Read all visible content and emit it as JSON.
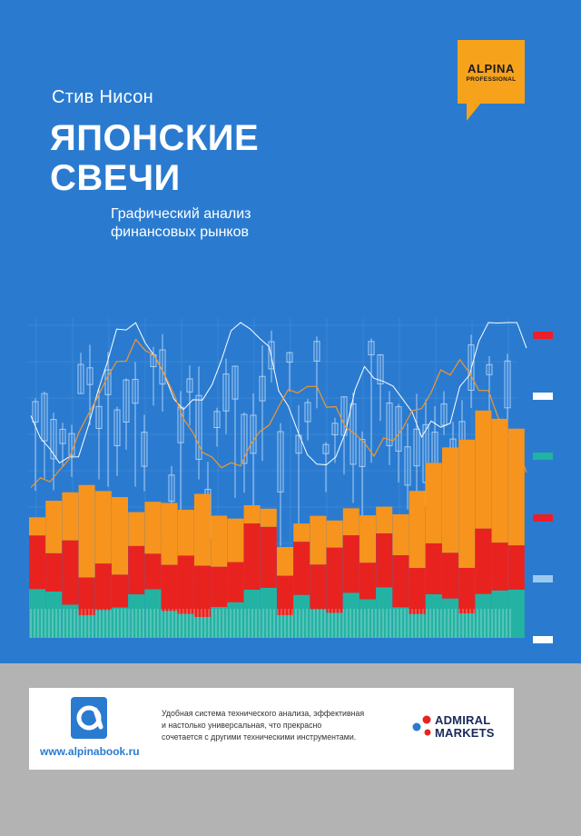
{
  "cover": {
    "author": "Стив Нисон",
    "title_lines": [
      "ЯПОНСКИЕ",
      "СВЕЧИ"
    ],
    "subtitle_lines": [
      "Графический анализ",
      "финансовых рынков"
    ],
    "background_color": "#2a7bd0"
  },
  "badge": {
    "name": "ALPINA",
    "sub": "PROFESSIONAL",
    "color": "#f7a21b"
  },
  "footer": {
    "publisher_url": "www.alpinabook.ru",
    "publisher_logo_icon": "alpina-a-logo-icon",
    "blurb_lines": [
      "Удобная система технического анализа, эффективная",
      "и  настолько  универсальная,  что прекрасно",
      "сочетается с другими техническими инструментами."
    ],
    "sponsor_lines": [
      "ADMIRAL",
      "MARKETS"
    ],
    "sponsor_logo_icon": "admiral-markets-dots-icon"
  },
  "colors": {
    "orange": "#f7941d",
    "red": "#e8231f",
    "teal": "#24b3a3",
    "candle": "#a9cdf2",
    "line_white": "#ffffff",
    "line_orange": "#f2962b",
    "marker_red": "#ea1f2a",
    "marker_white": "#ffffff",
    "marker_teal": "#1fb3a0",
    "marker_lightblue": "#9cc9f1"
  },
  "side_markers": [
    "red",
    "white",
    "teal",
    "red",
    "lightblue",
    "white"
  ]
}
